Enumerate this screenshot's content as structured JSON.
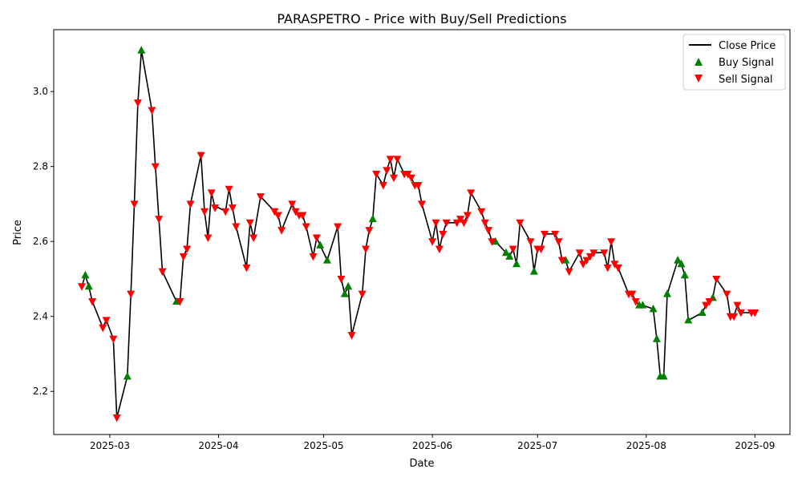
{
  "chart_data": {
    "type": "line",
    "title": "PARASPETRO - Price with Buy/Sell Predictions",
    "xlabel": "Date",
    "ylabel": "Price",
    "x_ticks": [
      "2025-03",
      "2025-04",
      "2025-05",
      "2025-06",
      "2025-07",
      "2025-08",
      "2025-09"
    ],
    "y_ticks": [
      "2.2",
      "2.4",
      "2.6",
      "2.8",
      "3.0"
    ],
    "xlim": [
      "2025-02-13",
      "2025-09-11"
    ],
    "ylim": [
      2.085,
      3.165
    ],
    "grid": false,
    "legend_position": "upper right",
    "legend": {
      "close": "Close Price",
      "buy": "Buy Signal",
      "sell": "Sell Signal"
    },
    "colors": {
      "line": "#000000",
      "buy": "#008000",
      "sell": "#ff0000"
    },
    "series": [
      {
        "name": "Close Price",
        "points": [
          [
            "2025-02-21",
            2.48
          ],
          [
            "2025-02-22",
            2.51
          ],
          [
            "2025-02-23",
            2.48
          ],
          [
            "2025-02-24",
            2.44
          ],
          [
            "2025-02-27",
            2.37
          ],
          [
            "2025-02-28",
            2.39
          ],
          [
            "2025-03-02",
            2.34
          ],
          [
            "2025-03-03",
            2.13
          ],
          [
            "2025-03-06",
            2.24
          ],
          [
            "2025-03-07",
            2.46
          ],
          [
            "2025-03-08",
            2.7
          ],
          [
            "2025-03-09",
            2.97
          ],
          [
            "2025-03-10",
            3.11
          ],
          [
            "2025-03-13",
            2.95
          ],
          [
            "2025-03-14",
            2.8
          ],
          [
            "2025-03-15",
            2.66
          ],
          [
            "2025-03-16",
            2.52
          ],
          [
            "2025-03-20",
            2.44
          ],
          [
            "2025-03-21",
            2.44
          ],
          [
            "2025-03-22",
            2.56
          ],
          [
            "2025-03-23",
            2.58
          ],
          [
            "2025-03-24",
            2.7
          ],
          [
            "2025-03-27",
            2.83
          ],
          [
            "2025-03-28",
            2.68
          ],
          [
            "2025-03-29",
            2.61
          ],
          [
            "2025-03-30",
            2.73
          ],
          [
            "2025-03-31",
            2.69
          ],
          [
            "2025-04-01",
            2.69
          ],
          [
            "2025-04-03",
            2.68
          ],
          [
            "2025-04-04",
            2.74
          ],
          [
            "2025-04-05",
            2.69
          ],
          [
            "2025-04-06",
            2.64
          ],
          [
            "2025-04-09",
            2.53
          ],
          [
            "2025-04-10",
            2.65
          ],
          [
            "2025-04-11",
            2.61
          ],
          [
            "2025-04-13",
            2.72
          ],
          [
            "2025-04-17",
            2.68
          ],
          [
            "2025-04-18",
            2.67
          ],
          [
            "2025-04-19",
            2.63
          ],
          [
            "2025-04-22",
            2.7
          ],
          [
            "2025-04-23",
            2.68
          ],
          [
            "2025-04-24",
            2.67
          ],
          [
            "2025-04-25",
            2.67
          ],
          [
            "2025-04-26",
            2.64
          ],
          [
            "2025-04-28",
            2.56
          ],
          [
            "2025-04-29",
            2.61
          ],
          [
            "2025-04-30",
            2.59
          ],
          [
            "2025-05-02",
            2.55
          ],
          [
            "2025-05-05",
            2.64
          ],
          [
            "2025-05-06",
            2.5
          ],
          [
            "2025-05-07",
            2.46
          ],
          [
            "2025-05-08",
            2.48
          ],
          [
            "2025-05-09",
            2.35
          ],
          [
            "2025-05-12",
            2.46
          ],
          [
            "2025-05-13",
            2.58
          ],
          [
            "2025-05-14",
            2.63
          ],
          [
            "2025-05-15",
            2.66
          ],
          [
            "2025-05-16",
            2.78
          ],
          [
            "2025-05-18",
            2.75
          ],
          [
            "2025-05-19",
            2.79
          ],
          [
            "2025-05-20",
            2.82
          ],
          [
            "2025-05-21",
            2.77
          ],
          [
            "2025-05-22",
            2.82
          ],
          [
            "2025-05-24",
            2.78
          ],
          [
            "2025-05-25",
            2.78
          ],
          [
            "2025-05-26",
            2.77
          ],
          [
            "2025-05-27",
            2.75
          ],
          [
            "2025-05-28",
            2.75
          ],
          [
            "2025-05-29",
            2.7
          ],
          [
            "2025-06-01",
            2.6
          ],
          [
            "2025-06-02",
            2.65
          ],
          [
            "2025-06-03",
            2.58
          ],
          [
            "2025-06-04",
            2.62
          ],
          [
            "2025-06-05",
            2.65
          ],
          [
            "2025-06-08",
            2.65
          ],
          [
            "2025-06-09",
            2.66
          ],
          [
            "2025-06-10",
            2.65
          ],
          [
            "2025-06-11",
            2.67
          ],
          [
            "2025-06-12",
            2.73
          ],
          [
            "2025-06-15",
            2.68
          ],
          [
            "2025-06-16",
            2.65
          ],
          [
            "2025-06-17",
            2.63
          ],
          [
            "2025-06-18",
            2.6
          ],
          [
            "2025-06-19",
            2.6
          ],
          [
            "2025-06-22",
            2.57
          ],
          [
            "2025-06-23",
            2.56
          ],
          [
            "2025-06-24",
            2.58
          ],
          [
            "2025-06-25",
            2.54
          ],
          [
            "2025-06-26",
            2.65
          ],
          [
            "2025-06-29",
            2.6
          ],
          [
            "2025-06-30",
            2.52
          ],
          [
            "2025-07-01",
            2.58
          ],
          [
            "2025-07-02",
            2.58
          ],
          [
            "2025-07-03",
            2.62
          ],
          [
            "2025-07-06",
            2.62
          ],
          [
            "2025-07-07",
            2.6
          ],
          [
            "2025-07-08",
            2.55
          ],
          [
            "2025-07-09",
            2.55
          ],
          [
            "2025-07-10",
            2.52
          ],
          [
            "2025-07-13",
            2.57
          ],
          [
            "2025-07-14",
            2.54
          ],
          [
            "2025-07-15",
            2.55
          ],
          [
            "2025-07-16",
            2.56
          ],
          [
            "2025-07-17",
            2.57
          ],
          [
            "2025-07-20",
            2.57
          ],
          [
            "2025-07-21",
            2.53
          ],
          [
            "2025-07-22",
            2.6
          ],
          [
            "2025-07-23",
            2.54
          ],
          [
            "2025-07-24",
            2.53
          ],
          [
            "2025-07-27",
            2.46
          ],
          [
            "2025-07-28",
            2.46
          ],
          [
            "2025-07-29",
            2.44
          ],
          [
            "2025-07-30",
            2.43
          ],
          [
            "2025-07-31",
            2.43
          ],
          [
            "2025-08-03",
            2.42
          ],
          [
            "2025-08-04",
            2.34
          ],
          [
            "2025-08-05",
            2.24
          ],
          [
            "2025-08-06",
            2.24
          ],
          [
            "2025-08-07",
            2.46
          ],
          [
            "2025-08-10",
            2.55
          ],
          [
            "2025-08-11",
            2.54
          ],
          [
            "2025-08-12",
            2.51
          ],
          [
            "2025-08-13",
            2.39
          ],
          [
            "2025-08-17",
            2.41
          ],
          [
            "2025-08-18",
            2.43
          ],
          [
            "2025-08-19",
            2.44
          ],
          [
            "2025-08-20",
            2.45
          ],
          [
            "2025-08-21",
            2.5
          ],
          [
            "2025-08-24",
            2.46
          ],
          [
            "2025-08-25",
            2.4
          ],
          [
            "2025-08-26",
            2.4
          ],
          [
            "2025-08-27",
            2.43
          ],
          [
            "2025-08-28",
            2.41
          ],
          [
            "2025-08-31",
            2.41
          ],
          [
            "2025-09-01",
            2.41
          ]
        ]
      },
      {
        "name": "Buy Signal",
        "points": [
          [
            "2025-02-22",
            2.51
          ],
          [
            "2025-02-23",
            2.48
          ],
          [
            "2025-03-06",
            2.24
          ],
          [
            "2025-03-10",
            3.11
          ],
          [
            "2025-03-20",
            2.44
          ],
          [
            "2025-04-30",
            2.59
          ],
          [
            "2025-05-02",
            2.55
          ],
          [
            "2025-05-07",
            2.46
          ],
          [
            "2025-05-08",
            2.48
          ],
          [
            "2025-05-15",
            2.66
          ],
          [
            "2025-06-19",
            2.6
          ],
          [
            "2025-06-22",
            2.57
          ],
          [
            "2025-06-23",
            2.56
          ],
          [
            "2025-06-25",
            2.54
          ],
          [
            "2025-06-30",
            2.52
          ],
          [
            "2025-07-09",
            2.55
          ],
          [
            "2025-07-30",
            2.43
          ],
          [
            "2025-07-31",
            2.43
          ],
          [
            "2025-08-03",
            2.42
          ],
          [
            "2025-08-04",
            2.34
          ],
          [
            "2025-08-05",
            2.24
          ],
          [
            "2025-08-06",
            2.24
          ],
          [
            "2025-08-07",
            2.46
          ],
          [
            "2025-08-10",
            2.55
          ],
          [
            "2025-08-11",
            2.54
          ],
          [
            "2025-08-12",
            2.51
          ],
          [
            "2025-08-13",
            2.39
          ],
          [
            "2025-08-17",
            2.41
          ],
          [
            "2025-08-20",
            2.45
          ]
        ]
      },
      {
        "name": "Sell Signal",
        "points": [
          [
            "2025-02-21",
            2.48
          ],
          [
            "2025-02-24",
            2.44
          ],
          [
            "2025-02-27",
            2.37
          ],
          [
            "2025-02-28",
            2.39
          ],
          [
            "2025-03-02",
            2.34
          ],
          [
            "2025-03-03",
            2.13
          ],
          [
            "2025-03-07",
            2.46
          ],
          [
            "2025-03-08",
            2.7
          ],
          [
            "2025-03-09",
            2.97
          ],
          [
            "2025-03-13",
            2.95
          ],
          [
            "2025-03-14",
            2.8
          ],
          [
            "2025-03-15",
            2.66
          ],
          [
            "2025-03-16",
            2.52
          ],
          [
            "2025-03-21",
            2.44
          ],
          [
            "2025-03-22",
            2.56
          ],
          [
            "2025-03-23",
            2.58
          ],
          [
            "2025-03-24",
            2.7
          ],
          [
            "2025-03-27",
            2.83
          ],
          [
            "2025-03-28",
            2.68
          ],
          [
            "2025-03-29",
            2.61
          ],
          [
            "2025-03-30",
            2.73
          ],
          [
            "2025-03-31",
            2.69
          ],
          [
            "2025-04-03",
            2.68
          ],
          [
            "2025-04-04",
            2.74
          ],
          [
            "2025-04-05",
            2.69
          ],
          [
            "2025-04-06",
            2.64
          ],
          [
            "2025-04-09",
            2.53
          ],
          [
            "2025-04-10",
            2.65
          ],
          [
            "2025-04-11",
            2.61
          ],
          [
            "2025-04-13",
            2.72
          ],
          [
            "2025-04-17",
            2.68
          ],
          [
            "2025-04-18",
            2.67
          ],
          [
            "2025-04-19",
            2.63
          ],
          [
            "2025-04-22",
            2.7
          ],
          [
            "2025-04-23",
            2.68
          ],
          [
            "2025-04-24",
            2.67
          ],
          [
            "2025-04-25",
            2.67
          ],
          [
            "2025-04-26",
            2.64
          ],
          [
            "2025-04-28",
            2.56
          ],
          [
            "2025-04-29",
            2.61
          ],
          [
            "2025-05-05",
            2.64
          ],
          [
            "2025-05-06",
            2.5
          ],
          [
            "2025-05-09",
            2.35
          ],
          [
            "2025-05-12",
            2.46
          ],
          [
            "2025-05-13",
            2.58
          ],
          [
            "2025-05-14",
            2.63
          ],
          [
            "2025-05-16",
            2.78
          ],
          [
            "2025-05-18",
            2.75
          ],
          [
            "2025-05-19",
            2.79
          ],
          [
            "2025-05-20",
            2.82
          ],
          [
            "2025-05-21",
            2.77
          ],
          [
            "2025-05-22",
            2.82
          ],
          [
            "2025-05-24",
            2.78
          ],
          [
            "2025-05-25",
            2.78
          ],
          [
            "2025-05-26",
            2.77
          ],
          [
            "2025-05-27",
            2.75
          ],
          [
            "2025-05-28",
            2.75
          ],
          [
            "2025-05-29",
            2.7
          ],
          [
            "2025-06-01",
            2.6
          ],
          [
            "2025-06-02",
            2.65
          ],
          [
            "2025-06-03",
            2.58
          ],
          [
            "2025-06-04",
            2.62
          ],
          [
            "2025-06-05",
            2.65
          ],
          [
            "2025-06-08",
            2.65
          ],
          [
            "2025-06-09",
            2.66
          ],
          [
            "2025-06-10",
            2.65
          ],
          [
            "2025-06-11",
            2.67
          ],
          [
            "2025-06-12",
            2.73
          ],
          [
            "2025-06-15",
            2.68
          ],
          [
            "2025-06-16",
            2.65
          ],
          [
            "2025-06-17",
            2.63
          ],
          [
            "2025-06-18",
            2.6
          ],
          [
            "2025-06-24",
            2.58
          ],
          [
            "2025-06-26",
            2.65
          ],
          [
            "2025-06-29",
            2.6
          ],
          [
            "2025-07-01",
            2.58
          ],
          [
            "2025-07-02",
            2.58
          ],
          [
            "2025-07-03",
            2.62
          ],
          [
            "2025-07-06",
            2.62
          ],
          [
            "2025-07-07",
            2.6
          ],
          [
            "2025-07-08",
            2.55
          ],
          [
            "2025-07-10",
            2.52
          ],
          [
            "2025-07-13",
            2.57
          ],
          [
            "2025-07-14",
            2.54
          ],
          [
            "2025-07-15",
            2.55
          ],
          [
            "2025-07-16",
            2.56
          ],
          [
            "2025-07-17",
            2.57
          ],
          [
            "2025-07-20",
            2.57
          ],
          [
            "2025-07-21",
            2.53
          ],
          [
            "2025-07-22",
            2.6
          ],
          [
            "2025-07-23",
            2.54
          ],
          [
            "2025-07-24",
            2.53
          ],
          [
            "2025-07-27",
            2.46
          ],
          [
            "2025-07-28",
            2.46
          ],
          [
            "2025-07-29",
            2.44
          ],
          [
            "2025-08-18",
            2.43
          ],
          [
            "2025-08-19",
            2.44
          ],
          [
            "2025-08-21",
            2.5
          ],
          [
            "2025-08-24",
            2.46
          ],
          [
            "2025-08-25",
            2.4
          ],
          [
            "2025-08-26",
            2.4
          ],
          [
            "2025-08-27",
            2.43
          ],
          [
            "2025-08-28",
            2.41
          ],
          [
            "2025-08-31",
            2.41
          ],
          [
            "2025-09-01",
            2.41
          ]
        ]
      }
    ]
  }
}
